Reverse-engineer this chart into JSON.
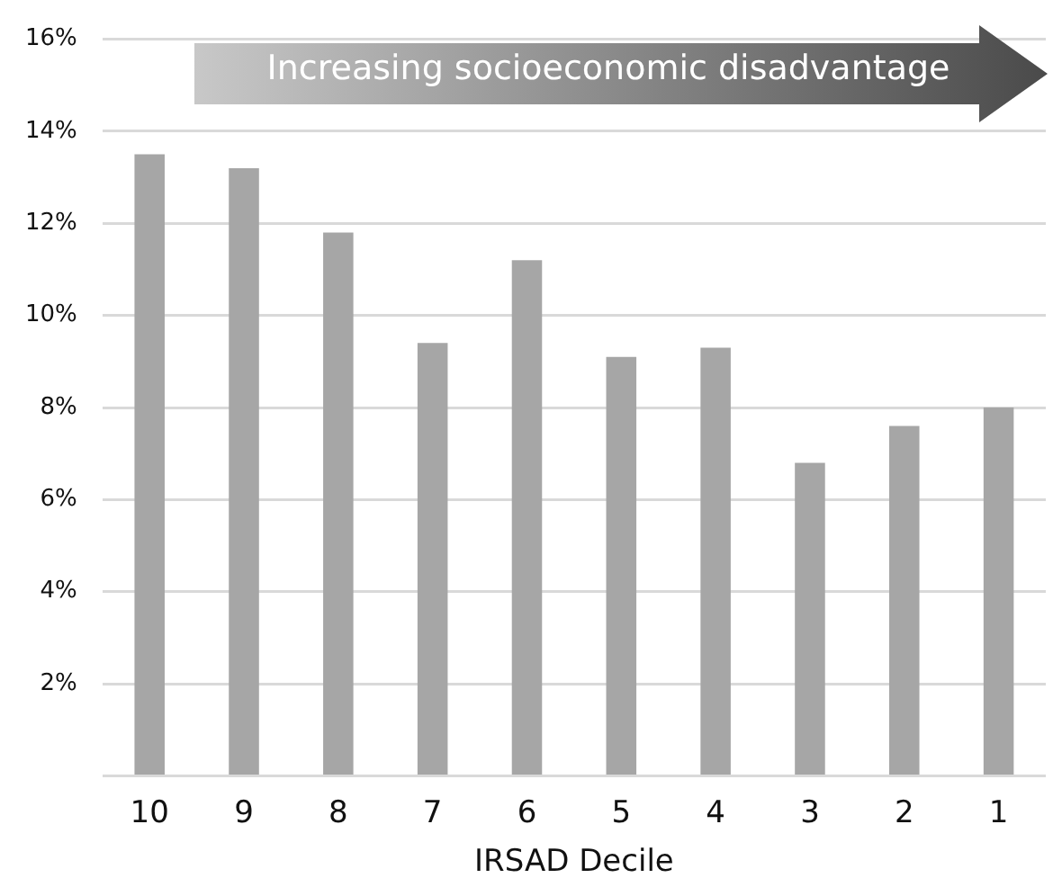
{
  "chart_data": {
    "type": "bar",
    "xlabel": "IRSAD Decile",
    "categories": [
      "10",
      "9",
      "8",
      "7",
      "6",
      "5",
      "4",
      "3",
      "2",
      "1"
    ],
    "values": [
      13.5,
      13.2,
      11.8,
      9.4,
      11.2,
      9.1,
      9.3,
      6.8,
      7.6,
      8.0
    ],
    "color": "#a6a6a6",
    "ylim": [
      0,
      16
    ],
    "yticks": [
      {
        "value": 0,
        "label": null
      },
      {
        "value": 2,
        "label": "2%"
      },
      {
        "value": 4,
        "label": "4%"
      },
      {
        "value": 6,
        "label": "6%"
      },
      {
        "value": 8,
        "label": "8%"
      },
      {
        "value": 10,
        "label": "10%"
      },
      {
        "value": 12,
        "label": "12%"
      },
      {
        "value": 14,
        "label": "14%"
      },
      {
        "value": 16,
        "label": "16%"
      }
    ],
    "grid": "y",
    "legend": false,
    "annotations": [
      "Increasing socioeconomic disadvantage"
    ]
  }
}
